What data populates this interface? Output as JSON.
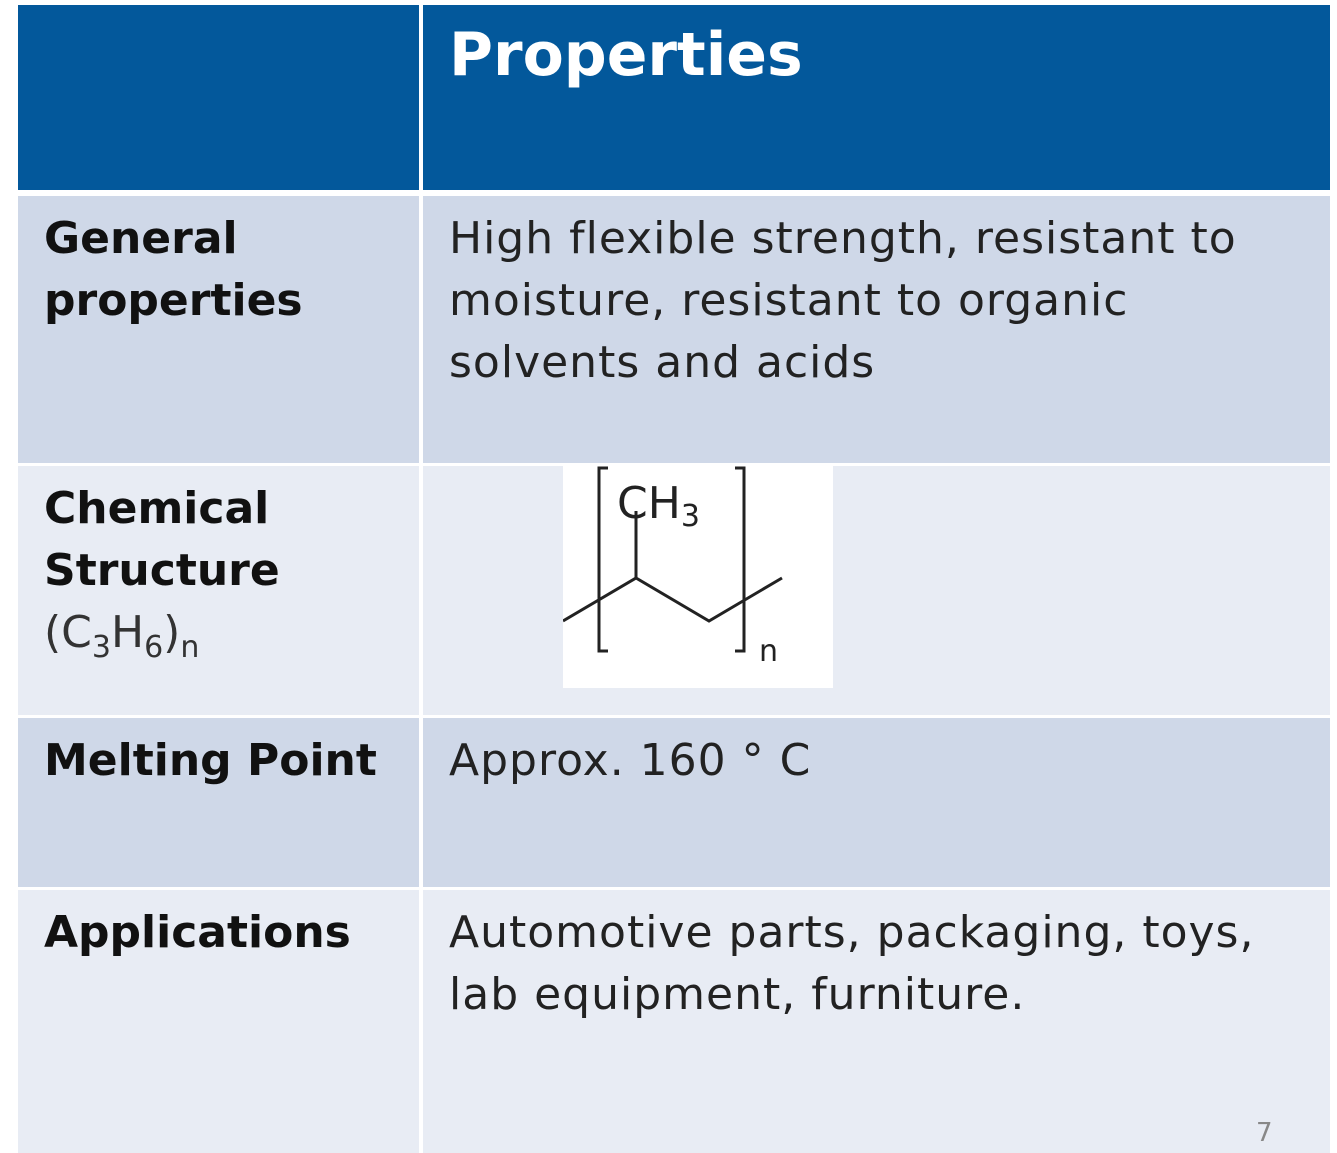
{
  "header": {
    "title": "Properties"
  },
  "rows": [
    {
      "label": "General properties",
      "value": "High flexible strength, resistant to moisture, resistant to organic solvents and acids"
    },
    {
      "label": "Chemical Structure",
      "formula": {
        "a": "(C",
        "b": "3",
        "c": "H",
        "d": "6",
        "e": ")",
        "f": "n"
      },
      "structure": {
        "group": "CH",
        "group_sub": "3",
        "repeat": "n"
      }
    },
    {
      "label": "Melting Point",
      "value": "Approx. 160 ° C"
    },
    {
      "label": "Applications",
      "value": "Automotive parts, packaging, toys, lab equipment, furniture."
    }
  ],
  "page_number": "7"
}
